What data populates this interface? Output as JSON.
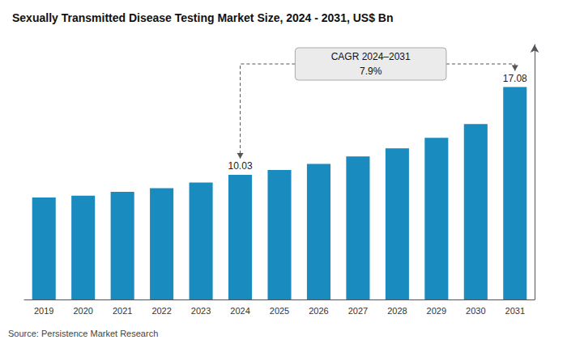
{
  "chart_data": {
    "type": "bar",
    "title": "Sexually Transmitted Disease Testing Market Size, 2024 - 2031, US$ Bn",
    "categories": [
      "2019",
      "2020",
      "2021",
      "2022",
      "2023",
      "2024",
      "2025",
      "2026",
      "2027",
      "2028",
      "2029",
      "2030",
      "2031"
    ],
    "values": [
      8.2,
      8.35,
      8.65,
      8.95,
      9.4,
      10.03,
      10.42,
      10.9,
      11.5,
      12.15,
      13.0,
      14.1,
      17.08
    ],
    "value_labels": [
      null,
      null,
      null,
      null,
      null,
      "10.03",
      null,
      null,
      null,
      null,
      null,
      null,
      "17.08"
    ],
    "color": "#1a8bbf",
    "ylim": [
      0,
      20.5
    ],
    "tick_labels": "x",
    "grid": false,
    "annotations": [
      "CAGR 2024–2031",
      "7.9%"
    ],
    "source": "Source: Persistence Market Research"
  }
}
